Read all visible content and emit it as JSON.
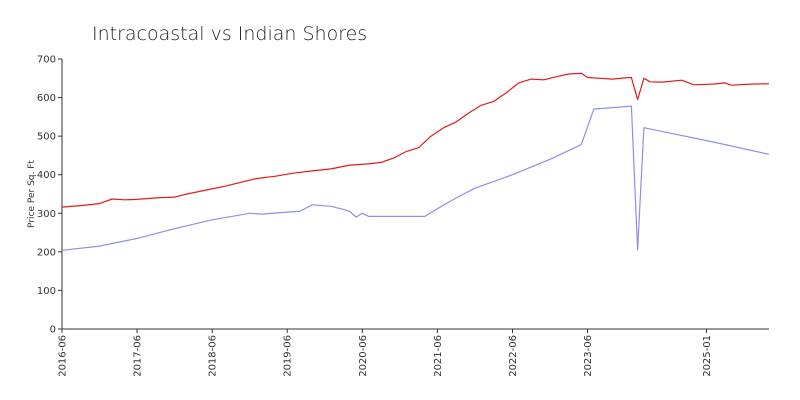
{
  "chart_data": {
    "type": "line",
    "title": "Intracoastal vs Indian Shores",
    "xlabel": "",
    "ylabel": "Price Per Sq. Ft",
    "ylim": [
      0,
      700
    ],
    "yticks": [
      0,
      100,
      200,
      300,
      400,
      500,
      600,
      700
    ],
    "xlim": [
      "2016-06",
      "2025-11"
    ],
    "xticks": [
      "2016-06",
      "2017-06",
      "2018-06",
      "2019-06",
      "2020-06",
      "2021-06",
      "2022-06",
      "2023-06",
      "2025-01"
    ],
    "grid": false,
    "legend": "none",
    "series": [
      {
        "color": "#e41a1c",
        "points": [
          [
            "2016-06",
            316
          ],
          [
            "2016-09",
            320
          ],
          [
            "2016-12",
            325
          ],
          [
            "2017-02",
            337
          ],
          [
            "2017-04",
            335
          ],
          [
            "2017-06",
            336
          ],
          [
            "2017-09",
            340
          ],
          [
            "2017-12",
            342
          ],
          [
            "2018-02",
            350
          ],
          [
            "2018-05",
            360
          ],
          [
            "2018-08",
            370
          ],
          [
            "2018-10",
            378
          ],
          [
            "2019-01",
            390
          ],
          [
            "2019-04",
            396
          ],
          [
            "2019-07",
            404
          ],
          [
            "2019-10",
            410
          ],
          [
            "2020-01",
            415
          ],
          [
            "2020-04",
            425
          ],
          [
            "2020-07",
            428
          ],
          [
            "2020-09",
            432
          ],
          [
            "2020-11",
            443
          ],
          [
            "2021-01",
            460
          ],
          [
            "2021-03",
            470
          ],
          [
            "2021-05",
            500
          ],
          [
            "2021-07",
            522
          ],
          [
            "2021-09",
            537
          ],
          [
            "2021-11",
            560
          ],
          [
            "2022-01",
            580
          ],
          [
            "2022-03",
            590
          ],
          [
            "2022-05",
            612
          ],
          [
            "2022-07",
            638
          ],
          [
            "2022-09",
            648
          ],
          [
            "2022-11",
            646
          ],
          [
            "2023-01",
            654
          ],
          [
            "2023-03",
            661
          ],
          [
            "2023-05",
            663
          ],
          [
            "2023-06",
            652
          ],
          [
            "2023-08",
            650
          ],
          [
            "2023-10",
            648
          ],
          [
            "2023-12",
            651
          ],
          [
            "2024-01",
            652
          ],
          [
            "2024-02",
            595
          ],
          [
            "2024-03",
            650
          ],
          [
            "2024-04",
            641
          ],
          [
            "2024-06",
            640
          ],
          [
            "2024-09",
            645
          ],
          [
            "2024-11",
            633
          ],
          [
            "2025-02",
            635
          ],
          [
            "2025-04",
            638
          ],
          [
            "2025-05",
            632
          ],
          [
            "2025-08",
            635
          ],
          [
            "2025-11",
            636
          ]
        ]
      },
      {
        "color": "#8e8ef0",
        "points": [
          [
            "2016-06",
            204
          ],
          [
            "2016-12",
            215
          ],
          [
            "2017-06",
            235
          ],
          [
            "2017-12",
            260
          ],
          [
            "2018-06",
            283
          ],
          [
            "2018-12",
            300
          ],
          [
            "2019-02",
            298
          ],
          [
            "2019-06",
            303
          ],
          [
            "2019-08",
            305
          ],
          [
            "2019-10",
            322
          ],
          [
            "2020-01",
            318
          ],
          [
            "2020-03",
            310
          ],
          [
            "2020-04",
            305
          ],
          [
            "2020-05",
            290
          ],
          [
            "2020-06",
            300
          ],
          [
            "2020-07",
            292
          ],
          [
            "2021-04",
            292
          ],
          [
            "2021-06",
            312
          ],
          [
            "2021-09",
            340
          ],
          [
            "2021-12",
            365
          ],
          [
            "2022-06",
            400
          ],
          [
            "2022-12",
            440
          ],
          [
            "2023-05",
            478
          ],
          [
            "2023-07",
            570
          ],
          [
            "2024-01",
            578
          ],
          [
            "2024-02",
            205
          ],
          [
            "2024-03",
            522
          ],
          [
            "2024-08",
            505
          ],
          [
            "2025-02",
            485
          ],
          [
            "2025-11",
            453
          ]
        ]
      }
    ]
  }
}
